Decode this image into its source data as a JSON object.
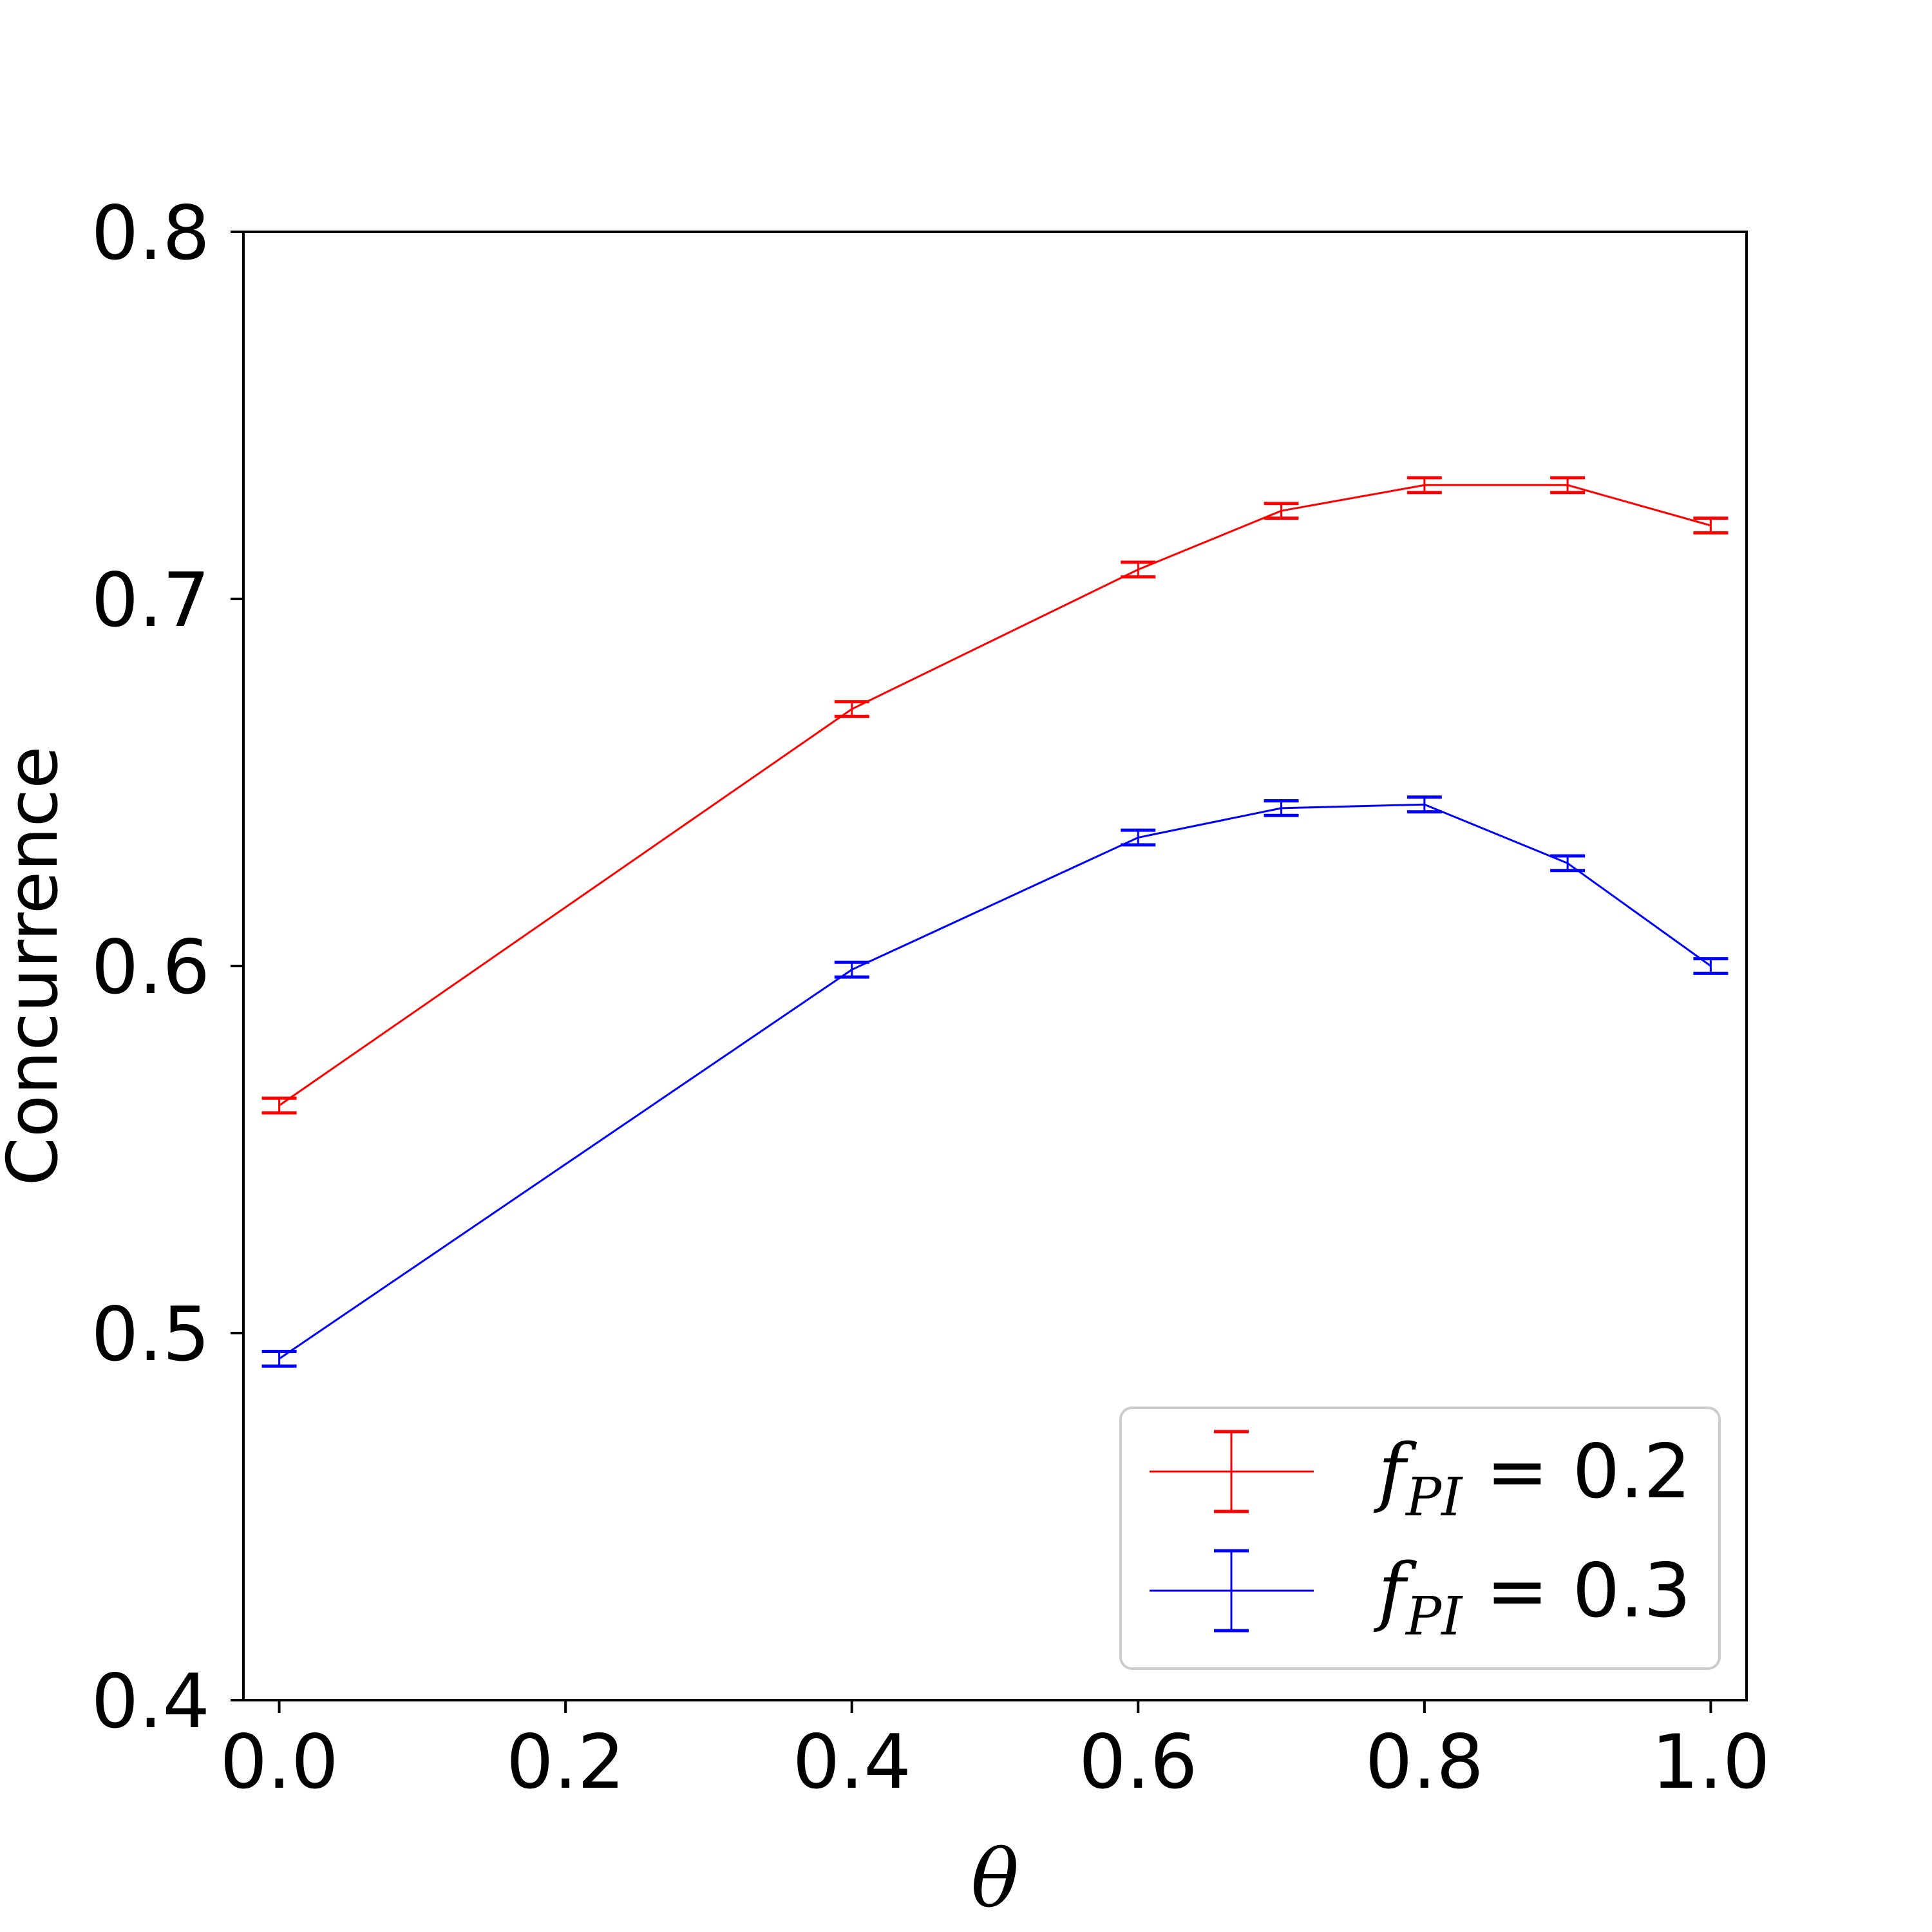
{
  "chart_data": {
    "type": "line",
    "title": "",
    "xlabel": "θ",
    "ylabel": "Concurrence",
    "xlim": [
      -0.025,
      1.025
    ],
    "ylim": [
      0.4,
      0.8
    ],
    "xticks": [
      "0.0",
      "0.2",
      "0.4",
      "0.6",
      "0.8",
      "1.0"
    ],
    "yticks": [
      "0.4",
      "0.5",
      "0.6",
      "0.7",
      "0.8"
    ],
    "grid": false,
    "legend_position": "bottom-right",
    "error_bars": true,
    "series": [
      {
        "name_main": "f",
        "name_sub": "PI",
        "name_value": " = 0.2",
        "color": "#ff0000",
        "x": [
          0.0,
          0.4,
          0.6,
          0.7,
          0.8,
          0.9,
          1.0
        ],
        "y": [
          0.562,
          0.67,
          0.708,
          0.724,
          0.731,
          0.731,
          0.72
        ],
        "err": [
          0.002,
          0.002,
          0.002,
          0.002,
          0.002,
          0.002,
          0.002
        ]
      },
      {
        "name_main": "f",
        "name_sub": "PI",
        "name_value": " = 0.3",
        "color": "#0000ff",
        "x": [
          0.0,
          0.4,
          0.6,
          0.7,
          0.8,
          0.9,
          1.0
        ],
        "y": [
          0.493,
          0.599,
          0.635,
          0.643,
          0.644,
          0.628,
          0.6
        ],
        "err": [
          0.002,
          0.002,
          0.002,
          0.002,
          0.002,
          0.002,
          0.002
        ]
      }
    ]
  }
}
